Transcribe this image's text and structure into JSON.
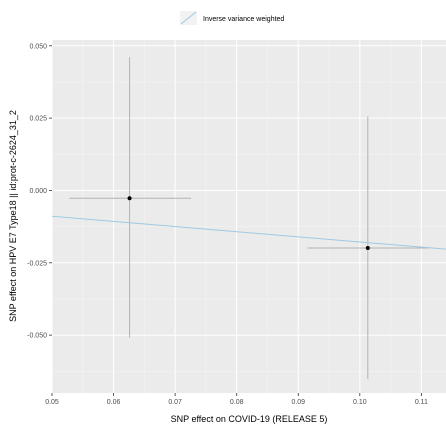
{
  "chart_data": {
    "type": "scatter",
    "title": "",
    "xlabel": "SNP effect on COVID-19 (RELEASE 5)",
    "ylabel": "SNP effect on HPV E7 Type18 || id:prot-c-2624_31_2",
    "xlim": [
      0.05,
      0.114
    ],
    "ylim": [
      -0.07,
      0.052
    ],
    "x_ticks": [
      0.05,
      0.06,
      0.07,
      0.08,
      0.09,
      0.1,
      0.11
    ],
    "x_tick_labels": [
      "0.05",
      "0.06",
      "0.07",
      "0.08",
      "0.09",
      "0.10",
      "0.11"
    ],
    "y_ticks": [
      0.05,
      0.025,
      0.0,
      -0.025,
      -0.05
    ],
    "y_tick_labels": [
      "0.050",
      "0.025",
      "0.000",
      "-0.025",
      "-0.050"
    ],
    "grid": true,
    "legend_position": "top",
    "points": [
      {
        "x": 0.0626,
        "y": -0.0027,
        "x_lo": 0.0528,
        "x_hi": 0.0726,
        "y_lo": -0.0508,
        "y_hi": 0.0461
      },
      {
        "x": 0.1013,
        "y": -0.0199,
        "x_lo": 0.0915,
        "x_hi": 0.1112,
        "y_lo": -0.0652,
        "y_hi": 0.0255
      }
    ],
    "lines": [
      {
        "name": "Inverse variance weighted",
        "intercept": 0.0,
        "slope": -0.178,
        "color": "#9ecae1"
      }
    ]
  },
  "colors": {
    "panel_bg": "#ebebeb",
    "grid_major": "#ffffff",
    "grid_minor": "#f5f5f5",
    "errorbar": "#b3b3b3",
    "point": "#000000",
    "ivw_line": "#9ecae1"
  }
}
